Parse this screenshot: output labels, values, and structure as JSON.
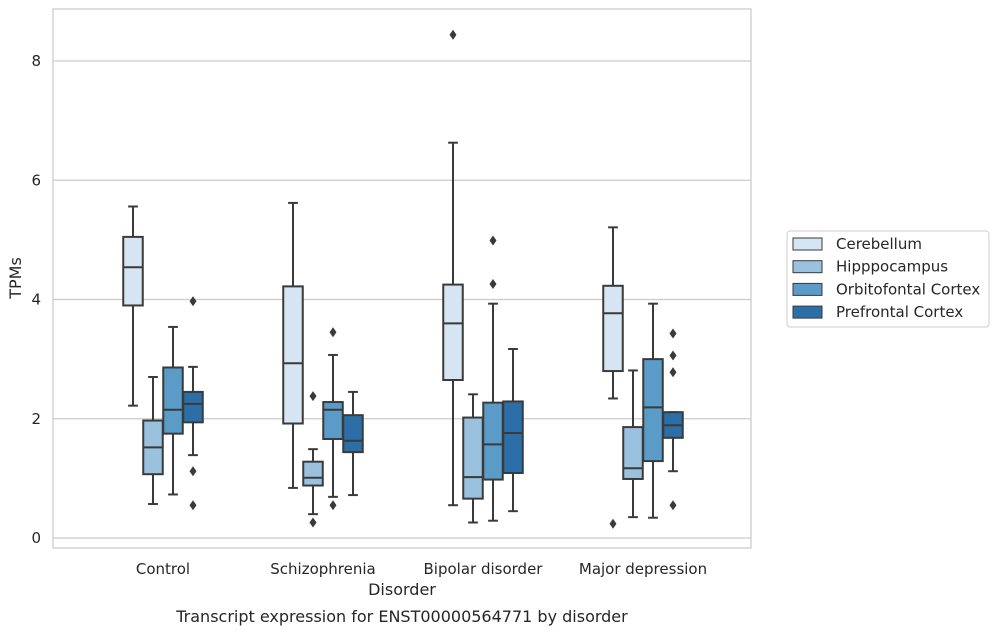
{
  "chart_data": {
    "type": "boxplot",
    "caption": "Transcript expression for ENST00000564771 by disorder",
    "xlabel": "Disorder",
    "ylabel": "TPMs",
    "ylim": [
      -0.16,
      8.85
    ],
    "yticks": [
      0,
      2,
      4,
      6,
      8
    ],
    "grid": "horizontal",
    "legend_position": "center-right",
    "categories": [
      "Control",
      "Schizophrenia",
      "Bipolar disorder",
      "Major depression"
    ],
    "series": [
      {
        "name": "Cerebellum",
        "color": "#d6e5f3",
        "boxes": [
          {
            "whislo": 2.22,
            "q1": 3.9,
            "med": 4.54,
            "q3": 5.05,
            "whishi": 5.56,
            "fliers": []
          },
          {
            "whislo": 0.84,
            "q1": 1.92,
            "med": 2.93,
            "q3": 4.22,
            "whishi": 5.62,
            "fliers": []
          },
          {
            "whislo": 0.55,
            "q1": 2.65,
            "med": 3.6,
            "q3": 4.25,
            "whishi": 6.63,
            "fliers": [
              8.44
            ]
          },
          {
            "whislo": 2.34,
            "q1": 2.8,
            "med": 3.77,
            "q3": 4.23,
            "whishi": 5.21,
            "fliers": [
              0.24
            ]
          }
        ]
      },
      {
        "name": "Hipppocampus",
        "color": "#9ac1dd",
        "boxes": [
          {
            "whislo": 0.57,
            "q1": 1.07,
            "med": 1.52,
            "q3": 1.97,
            "whishi": 2.7,
            "fliers": []
          },
          {
            "whislo": 0.4,
            "q1": 0.88,
            "med": 1.01,
            "q3": 1.28,
            "whishi": 1.49,
            "fliers": [
              2.38,
              0.26
            ]
          },
          {
            "whislo": 0.26,
            "q1": 0.66,
            "med": 1.02,
            "q3": 2.02,
            "whishi": 2.41,
            "fliers": []
          },
          {
            "whislo": 0.35,
            "q1": 0.99,
            "med": 1.17,
            "q3": 1.86,
            "whishi": 2.81,
            "fliers": []
          }
        ]
      },
      {
        "name": "Orbitofontal Cortex",
        "color": "#5b9bc8",
        "boxes": [
          {
            "whislo": 0.73,
            "q1": 1.75,
            "med": 2.15,
            "q3": 2.86,
            "whishi": 3.54,
            "fliers": []
          },
          {
            "whislo": 0.69,
            "q1": 1.66,
            "med": 2.15,
            "q3": 2.28,
            "whishi": 3.07,
            "fliers": [
              3.45,
              0.55
            ]
          },
          {
            "whislo": 0.29,
            "q1": 0.98,
            "med": 1.57,
            "q3": 2.27,
            "whishi": 3.93,
            "fliers": [
              4.99,
              4.26
            ]
          },
          {
            "whislo": 0.34,
            "q1": 1.29,
            "med": 2.19,
            "q3": 3.0,
            "whishi": 3.93,
            "fliers": []
          }
        ]
      },
      {
        "name": "Prefrontal Cortex",
        "color": "#2b6ea8",
        "boxes": [
          {
            "whislo": 1.39,
            "q1": 1.94,
            "med": 2.25,
            "q3": 2.45,
            "whishi": 2.87,
            "fliers": [
              3.97,
              1.12,
              0.55
            ]
          },
          {
            "whislo": 0.72,
            "q1": 1.44,
            "med": 1.63,
            "q3": 2.06,
            "whishi": 2.45,
            "fliers": []
          },
          {
            "whislo": 0.45,
            "q1": 1.09,
            "med": 1.76,
            "q3": 2.29,
            "whishi": 3.17,
            "fliers": []
          },
          {
            "whislo": 1.12,
            "q1": 1.68,
            "med": 1.89,
            "q3": 2.11,
            "whishi": 2.11,
            "fliers": [
              3.43,
              3.06,
              2.78,
              0.55
            ]
          }
        ]
      }
    ]
  }
}
